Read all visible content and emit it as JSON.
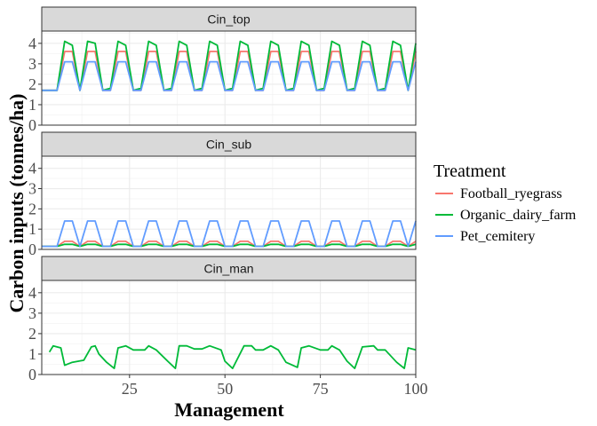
{
  "chart_data": {
    "type": "line",
    "xlabel": "Management",
    "ylabel": "Carbon inputs (tonnes/ha)",
    "xlim": [
      2,
      100
    ],
    "ylim": [
      0,
      4.6
    ],
    "x_ticks": [
      25,
      50,
      75,
      100
    ],
    "y_ticks": [
      0,
      1,
      2,
      3,
      4
    ],
    "grid": true,
    "legend": {
      "title": "Treatment",
      "position": "right",
      "entries": [
        {
          "name": "Football_ryegrass",
          "color": "#F8766D"
        },
        {
          "name": "Organic_dairy_farm",
          "color": "#00BA38"
        },
        {
          "name": "Pet_cemitery",
          "color": "#619CFF"
        }
      ]
    },
    "panels": [
      {
        "strip": "Cin_top",
        "x": [
          2,
          6,
          8,
          10,
          12,
          14,
          16,
          18,
          20,
          22,
          24,
          26,
          28,
          30,
          32,
          34,
          36,
          38,
          40,
          42,
          44,
          46,
          48,
          50,
          52,
          54,
          56,
          58,
          60,
          62,
          64,
          66,
          68,
          70,
          72,
          74,
          76,
          78,
          80,
          82,
          84,
          86,
          88,
          90,
          92,
          94,
          96,
          98,
          100
        ],
        "series": [
          {
            "name": "Football_ryegrass",
            "values": [
              1.7,
              1.7,
              3.6,
              3.6,
              1.7,
              3.6,
              3.6,
              1.7,
              1.7,
              3.6,
              3.6,
              1.7,
              1.7,
              3.6,
              3.6,
              1.7,
              1.7,
              3.6,
              3.6,
              1.7,
              1.7,
              3.6,
              3.6,
              1.7,
              1.7,
              3.6,
              3.6,
              1.7,
              1.7,
              3.6,
              3.6,
              1.7,
              1.7,
              3.6,
              3.6,
              1.7,
              1.7,
              3.6,
              3.6,
              1.7,
              1.7,
              3.6,
              3.6,
              1.7,
              1.7,
              3.6,
              3.6,
              1.7,
              3.6
            ]
          },
          {
            "name": "Organic_dairy_farm",
            "values": [
              1.7,
              1.7,
              4.1,
              3.9,
              1.7,
              4.1,
              4.0,
              1.7,
              1.8,
              4.1,
              3.9,
              1.7,
              1.8,
              4.1,
              3.9,
              1.7,
              1.8,
              4.1,
              3.9,
              1.7,
              1.8,
              4.1,
              3.9,
              1.7,
              1.8,
              4.1,
              3.9,
              1.7,
              1.8,
              4.1,
              3.9,
              1.7,
              1.8,
              4.1,
              3.9,
              1.7,
              1.8,
              4.1,
              3.9,
              1.7,
              1.8,
              4.1,
              3.9,
              1.7,
              1.8,
              4.1,
              3.9,
              1.7,
              4.0
            ]
          },
          {
            "name": "Pet_cemitery",
            "values": [
              1.7,
              1.7,
              3.1,
              3.1,
              1.7,
              3.1,
              3.1,
              1.7,
              1.7,
              3.1,
              3.1,
              1.7,
              1.7,
              3.1,
              3.1,
              1.7,
              1.7,
              3.1,
              3.1,
              1.7,
              1.7,
              3.1,
              3.1,
              1.7,
              1.7,
              3.1,
              3.1,
              1.7,
              1.7,
              3.1,
              3.1,
              1.7,
              1.7,
              3.1,
              3.1,
              1.7,
              1.7,
              3.1,
              3.1,
              1.7,
              1.7,
              3.1,
              3.1,
              1.7,
              1.7,
              3.1,
              3.1,
              1.7,
              3.1
            ]
          }
        ]
      },
      {
        "strip": "Cin_sub",
        "x": [
          2,
          6,
          8,
          10,
          12,
          14,
          16,
          18,
          20,
          22,
          24,
          26,
          28,
          30,
          32,
          34,
          36,
          38,
          40,
          42,
          44,
          46,
          48,
          50,
          52,
          54,
          56,
          58,
          60,
          62,
          64,
          66,
          68,
          70,
          72,
          74,
          76,
          78,
          80,
          82,
          84,
          86,
          88,
          90,
          92,
          94,
          96,
          98,
          100
        ],
        "series": [
          {
            "name": "Football_ryegrass",
            "values": [
              0.15,
              0.15,
              0.4,
              0.4,
              0.15,
              0.4,
              0.4,
              0.15,
              0.15,
              0.4,
              0.4,
              0.15,
              0.15,
              0.4,
              0.4,
              0.15,
              0.15,
              0.4,
              0.4,
              0.15,
              0.15,
              0.4,
              0.4,
              0.15,
              0.15,
              0.4,
              0.4,
              0.15,
              0.15,
              0.4,
              0.4,
              0.15,
              0.15,
              0.4,
              0.4,
              0.15,
              0.15,
              0.4,
              0.4,
              0.15,
              0.15,
              0.4,
              0.4,
              0.15,
              0.15,
              0.4,
              0.4,
              0.15,
              0.4
            ]
          },
          {
            "name": "Organic_dairy_farm",
            "values": [
              0.15,
              0.15,
              0.25,
              0.25,
              0.15,
              0.25,
              0.25,
              0.15,
              0.15,
              0.25,
              0.25,
              0.15,
              0.15,
              0.25,
              0.25,
              0.15,
              0.15,
              0.25,
              0.25,
              0.15,
              0.15,
              0.25,
              0.25,
              0.15,
              0.15,
              0.25,
              0.25,
              0.15,
              0.15,
              0.25,
              0.25,
              0.15,
              0.15,
              0.25,
              0.25,
              0.15,
              0.15,
              0.25,
              0.25,
              0.15,
              0.15,
              0.25,
              0.25,
              0.15,
              0.15,
              0.25,
              0.25,
              0.15,
              0.25
            ]
          },
          {
            "name": "Pet_cemitery",
            "values": [
              0.15,
              0.15,
              1.4,
              1.4,
              0.15,
              1.4,
              1.4,
              0.15,
              0.15,
              1.4,
              1.4,
              0.15,
              0.15,
              1.4,
              1.4,
              0.15,
              0.15,
              1.4,
              1.4,
              0.15,
              0.15,
              1.4,
              1.4,
              0.15,
              0.15,
              1.4,
              1.4,
              0.15,
              0.15,
              1.4,
              1.4,
              0.15,
              0.15,
              1.4,
              1.4,
              0.15,
              0.15,
              1.4,
              1.4,
              0.15,
              0.15,
              1.4,
              1.4,
              0.15,
              0.15,
              1.4,
              1.4,
              0.15,
              1.4
            ]
          }
        ]
      },
      {
        "strip": "Cin_man",
        "x": [
          4,
          5,
          7,
          8,
          10,
          13,
          15,
          16,
          17,
          19,
          21,
          22,
          24,
          26,
          29,
          30,
          32,
          35,
          37,
          38,
          40,
          42,
          44,
          46,
          49,
          50,
          52,
          55,
          57,
          58,
          60,
          62,
          64,
          66,
          69,
          70,
          72,
          75,
          77,
          78,
          80,
          82,
          84,
          86,
          89,
          90,
          92,
          95,
          97,
          98,
          100
        ],
        "series": [
          {
            "name": "Organic_dairy_farm",
            "values": [
              1.1,
              1.4,
              1.3,
              0.45,
              0.6,
              0.7,
              1.35,
              1.4,
              1.0,
              0.6,
              0.3,
              1.3,
              1.4,
              1.2,
              1.2,
              1.4,
              1.2,
              0.65,
              0.3,
              1.4,
              1.4,
              1.25,
              1.25,
              1.4,
              1.2,
              0.65,
              0.3,
              1.4,
              1.4,
              1.2,
              1.2,
              1.4,
              1.2,
              0.6,
              0.35,
              1.3,
              1.4,
              1.2,
              1.2,
              1.4,
              1.2,
              0.65,
              0.3,
              1.35,
              1.4,
              1.2,
              1.2,
              0.6,
              0.3,
              1.3,
              1.2
            ]
          }
        ]
      }
    ]
  }
}
